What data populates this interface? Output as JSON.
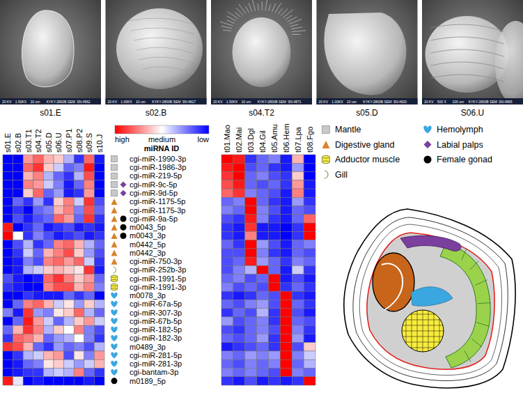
{
  "images": [
    {
      "label": "s01.E",
      "caption": [
        "20 KV",
        "1.50KX",
        "10 um",
        "KYKY-2800B SEM",
        "SN:4962"
      ]
    },
    {
      "label": "s02.B",
      "caption": [
        "20 KV",
        "1.00KX",
        "10 um",
        "KYKY-2800B SEM",
        "SN:4817"
      ]
    },
    {
      "label": "s04.T2",
      "caption": [
        "20 KV",
        "1.50KX",
        "10 um",
        "KYKY-2800B SEM",
        "SN:4871"
      ]
    },
    {
      "label": "s05.D",
      "caption": [
        "20 KV",
        "1.00KX",
        "10 um",
        "KYKY-2800B SEM",
        "SN:4920"
      ]
    },
    {
      "label": "S06.U",
      "caption": [
        "20 KV",
        "500 X",
        "100 um",
        "KYKY-2800B SEM",
        "SN:4965"
      ]
    }
  ],
  "colorbar": {
    "color_range": [
      -1,
      1
    ],
    "color_ticks": [
      {
        "value": 1,
        "label": "high"
      },
      {
        "value": 0,
        "label": "medium"
      },
      {
        "value": -1,
        "label": "low"
      }
    ],
    "colors": [
      "#ff0000",
      "#ffffff",
      "#0000ff"
    ]
  },
  "row_title": "miRNA ID",
  "rows": [
    {
      "label": "cgi-miR-1990-3p",
      "tissues": [
        0
      ]
    },
    {
      "label": "cgi-miR-1986-3p",
      "tissues": [
        0
      ]
    },
    {
      "label": "cgi-miR-219-5p",
      "tissues": [
        0
      ]
    },
    {
      "label": "cgi-miR-9c-5p",
      "tissues": [
        0,
        5
      ]
    },
    {
      "label": "cgi-miR-9d-5p",
      "tissues": [
        0,
        5
      ]
    },
    {
      "label": "cgi-miR-1175-5p",
      "tissues": [
        1
      ]
    },
    {
      "label": "cgi-miR-1175-3p",
      "tissues": [
        1
      ]
    },
    {
      "label": "cgi-miR-9a-5p",
      "tissues": [
        1,
        6
      ]
    },
    {
      "label": "m0043_5p",
      "tissues": [
        1,
        6
      ]
    },
    {
      "label": "m0043_3p",
      "tissues": [
        1,
        6
      ]
    },
    {
      "label": "m0442_5p",
      "tissues": [
        1
      ]
    },
    {
      "label": "m0442_3p",
      "tissues": [
        1
      ]
    },
    {
      "label": "cgi-miR-750-3p",
      "tissues": [
        1
      ]
    },
    {
      "label": "cgi-miR-252b-3p",
      "tissues": [
        3
      ]
    },
    {
      "label": "cgi-miR-1991-5p",
      "tissues": [
        2
      ]
    },
    {
      "label": "cgi-miR-1991-3p",
      "tissues": [
        2
      ]
    },
    {
      "label": "m0078_3p",
      "tissues": [
        4
      ]
    },
    {
      "label": "cgi-miR-67a-5p",
      "tissues": [
        4
      ]
    },
    {
      "label": "cgi-miR-307-3p",
      "tissues": [
        4
      ]
    },
    {
      "label": "cgi-miR-67b-5p",
      "tissues": [
        4
      ]
    },
    {
      "label": "cgi-miR-182-5p",
      "tissues": [
        4
      ]
    },
    {
      "label": "cgi-miR-182-3p",
      "tissues": [
        4
      ]
    },
    {
      "label": "m0489_3p",
      "tissues": [
        4
      ]
    },
    {
      "label": "cgi-miR-281-5p",
      "tissues": [
        4
      ]
    },
    {
      "label": "cgi-miR-281-3p",
      "tissues": [
        4
      ]
    },
    {
      "label": "cgi-bantam-3p",
      "tissues": [
        4
      ]
    },
    {
      "label": "m0189_5p",
      "tissues": [
        6
      ]
    }
  ],
  "legend": [
    {
      "label": "Mantle",
      "marker": "square",
      "color": "#c8c8c8"
    },
    {
      "label": "Digestive gland",
      "marker": "triangle",
      "color": "#d9822b"
    },
    {
      "label": "Adductor muscle",
      "marker": "cylinder",
      "color": "#f7ec3c"
    },
    {
      "label": "Gill",
      "marker": "crescent",
      "color": "#8dc63f"
    },
    {
      "label": "Hemolymph",
      "marker": "heart",
      "color": "#3ba7e0"
    },
    {
      "label": "Labial palps",
      "marker": "diamond",
      "color": "#7b3f9e"
    },
    {
      "label": "Female gonad",
      "marker": "circle",
      "color": "#000000"
    }
  ],
  "chart_data": [
    {
      "type": "heatmap",
      "columns": [
        "s01.E",
        "s02.B",
        "s03.T1",
        "s04.T2",
        "s05.D",
        "s06.U",
        "s07.P1",
        "s08.P2",
        "s09.S",
        "s10.J"
      ],
      "cells": [
        [
          -1,
          -1,
          0.4,
          0.6,
          0.3,
          0.2,
          -0.3,
          -0.8,
          0.6,
          -0.9
        ],
        [
          -1,
          -1,
          0.6,
          0.8,
          0.2,
          -0.2,
          -0.6,
          -0.5,
          0.9,
          -1
        ],
        [
          -1,
          -1,
          0.3,
          0.5,
          -0.3,
          -0.6,
          -0.8,
          -0.3,
          0.7,
          -1
        ],
        [
          -1,
          -1,
          0.5,
          0.4,
          -0.2,
          -0.5,
          -0.9,
          -0.6,
          0.5,
          -1
        ],
        [
          -1,
          -1,
          0.2,
          0.6,
          -0.6,
          -0.4,
          -0.9,
          -0.8,
          0.4,
          -1
        ],
        [
          -1,
          -0.6,
          -0.8,
          -0.4,
          -0.8,
          0.2,
          0.5,
          -0.2,
          0.8,
          -0.7
        ],
        [
          -1,
          -0.8,
          -1,
          -0.6,
          -0.5,
          0.3,
          0.5,
          -0.5,
          0.7,
          -0.6
        ],
        [
          -1,
          -0.7,
          -0.9,
          -0.7,
          -0.6,
          0.6,
          0.4,
          -0.6,
          0.8,
          -0.8
        ],
        [
          0.9,
          -1,
          -0.8,
          -0.6,
          -0.9,
          -0.8,
          -0.7,
          -0.9,
          -0.8,
          -0.9
        ],
        [
          1,
          0,
          -0.8,
          -0.5,
          -0.7,
          -0.9,
          -0.8,
          -0.7,
          -0.9,
          -0.8
        ],
        [
          -1,
          -0.7,
          -0.3,
          -0.8,
          -0.6,
          0.5,
          0.6,
          0.3,
          -0.3,
          -0.6
        ],
        [
          -1,
          -0.8,
          -0.2,
          -0.6,
          0.3,
          0.5,
          0.7,
          0.2,
          -0.4,
          -0.7
        ],
        [
          -1,
          -0.9,
          -0.5,
          -0.7,
          0.5,
          0.6,
          0.4,
          0.6,
          -0.2,
          -0.8
        ],
        [
          -1,
          -0.9,
          -0.3,
          -0.2,
          0.2,
          0.3,
          0.2,
          0.1,
          0.8,
          -0.9
        ],
        [
          -0.7,
          -0.9,
          -1,
          -0.9,
          0.6,
          0.8,
          0.5,
          0.2,
          0.4,
          -0.6
        ],
        [
          -0.8,
          -0.9,
          -1,
          -1,
          0.5,
          0.7,
          0.7,
          0.3,
          0.5,
          -0.5
        ],
        [
          -1,
          -1,
          -0.8,
          -0.9,
          -0.9,
          -0.9,
          -0.6,
          -0.8,
          -0.6,
          -1
        ],
        [
          -1,
          -0.6,
          0.5,
          0.6,
          0.3,
          -0.2,
          0.1,
          -0.4,
          0.2,
          -0.3
        ],
        [
          -0.5,
          -0.9,
          0.8,
          -0.4,
          -0.5,
          0.1,
          0.2,
          0.6,
          -0.3,
          -0.6
        ],
        [
          -1,
          -0.6,
          0.9,
          0.4,
          -0.2,
          -0.6,
          -0.3,
          0.2,
          0.4,
          -0.2
        ],
        [
          -0.6,
          0.3,
          0.8,
          0.5,
          -0.3,
          0.2,
          0,
          0.5,
          -0.5,
          -0.7
        ],
        [
          -0.8,
          0.6,
          0.5,
          0.3,
          -0.6,
          -0.4,
          -0.3,
          0,
          -0.5,
          -0.8
        ],
        [
          0.8,
          0.7,
          0.3,
          -0.6,
          -0.8,
          -0.4,
          -0.6,
          -0.5,
          -0.7,
          -0.3
        ],
        [
          -1,
          -0.8,
          -0.3,
          -0.2,
          0.3,
          0.4,
          -0.7,
          0.1,
          -0.5,
          0.4
        ],
        [
          -1,
          -0.9,
          -0.6,
          -0.5,
          0.1,
          0.2,
          -0.2,
          -0.4,
          -0.2,
          0.3
        ],
        [
          -1,
          -0.9,
          -0.8,
          -0.8,
          -0.3,
          -0.2,
          -0.3,
          0.5,
          -0.6,
          -0.8
        ],
        [
          0.9,
          -0.1,
          -1,
          -0.9,
          -1,
          -1,
          -1,
          -1,
          -0.9,
          -1
        ]
      ]
    },
    {
      "type": "heatmap",
      "columns": [
        "t01.Mao",
        "t02.Mai",
        "t03.Dgl",
        "t04.Gil",
        "t05.Amu",
        "t06.Hem",
        "t07.Lpa",
        "t08.Fgo"
      ],
      "cells": [
        [
          1,
          0.9,
          -0.8,
          -0.6,
          -0.5,
          -0.9,
          0.3,
          -1
        ],
        [
          0.9,
          1,
          -0.7,
          -0.6,
          -0.8,
          -0.9,
          -0.4,
          -1
        ],
        [
          0.8,
          1,
          -0.6,
          -0.5,
          -0.7,
          -0.8,
          0.2,
          -1
        ],
        [
          0.7,
          0.9,
          -0.6,
          -0.7,
          -0.6,
          -0.8,
          0.4,
          -0.9
        ],
        [
          0.6,
          0.8,
          -0.5,
          -0.6,
          -0.7,
          -0.9,
          0.5,
          -0.9
        ],
        [
          -0.6,
          -0.5,
          1,
          -0.6,
          -0.8,
          -0.9,
          -0.4,
          -0.8
        ],
        [
          -0.5,
          -0.6,
          1,
          -0.5,
          -0.7,
          -0.9,
          -0.6,
          -0.7
        ],
        [
          -0.7,
          -0.8,
          0.9,
          -0.5,
          -0.8,
          -0.9,
          -0.6,
          0.6
        ],
        [
          -0.8,
          -0.9,
          0.8,
          -0.9,
          -0.9,
          -1,
          -0.8,
          1
        ],
        [
          -0.8,
          -0.9,
          0.5,
          -0.9,
          -0.9,
          -1,
          -0.8,
          1
        ],
        [
          -0.6,
          -0.8,
          1,
          -0.4,
          -0.7,
          -0.9,
          -0.6,
          -0.5
        ],
        [
          -0.7,
          -0.7,
          1,
          -0.5,
          -0.8,
          -0.9,
          -0.6,
          -0.7
        ],
        [
          -0.7,
          -0.6,
          0.9,
          -0.4,
          -0.6,
          -0.8,
          -0.5,
          -0.6
        ],
        [
          -0.7,
          -0.5,
          -0.3,
          1,
          -0.6,
          -0.9,
          -0.2,
          -0.8
        ],
        [
          -0.6,
          -0.5,
          -0.7,
          -0.6,
          1,
          -0.9,
          -0.7,
          -0.9
        ],
        [
          -0.5,
          -0.7,
          -0.6,
          -0.7,
          1,
          -0.8,
          -0.6,
          -0.8
        ],
        [
          -0.8,
          -0.9,
          -0.8,
          -0.6,
          -0.7,
          1,
          -0.8,
          -0.9
        ],
        [
          -0.6,
          -0.7,
          -0.5,
          -0.4,
          -0.7,
          1,
          -0.6,
          -0.8
        ],
        [
          -0.8,
          -0.6,
          -0.7,
          -0.3,
          -0.8,
          1,
          -0.7,
          -0.9
        ],
        [
          -0.4,
          -0.7,
          -0.6,
          -0.5,
          -0.8,
          1,
          -0.6,
          -0.7
        ],
        [
          -0.7,
          -0.8,
          -0.6,
          -0.5,
          -0.7,
          1,
          -0.5,
          -0.8
        ],
        [
          -0.6,
          -0.7,
          -0.6,
          -0.4,
          -0.8,
          1,
          -0.4,
          -0.9
        ],
        [
          -0.9,
          -0.8,
          -0.7,
          -0.6,
          -0.8,
          1,
          -0.7,
          0.2
        ],
        [
          -0.5,
          -0.6,
          -0.4,
          -0.5,
          -0.4,
          1,
          -0.5,
          -0.2
        ],
        [
          -0.6,
          -0.7,
          -0.5,
          -0.6,
          -0.5,
          1,
          -0.6,
          -0.3
        ],
        [
          -0.5,
          -0.6,
          -0.5,
          -0.6,
          -0.7,
          1,
          -0.5,
          -0.6
        ],
        [
          -0.8,
          -0.9,
          -0.7,
          -0.9,
          -0.8,
          -0.9,
          -0.8,
          1
        ]
      ]
    }
  ]
}
